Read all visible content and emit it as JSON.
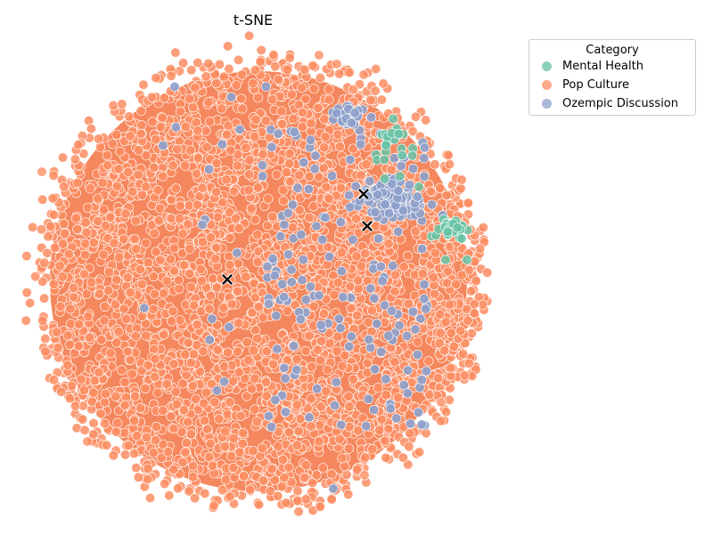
{
  "chart_data": {
    "type": "scatter",
    "title": "t-SNE",
    "xlabel": "",
    "ylabel": "",
    "axes_visible": false,
    "grid": false,
    "legend": {
      "title": "Category",
      "position": "top-right, outside plot",
      "entries": [
        {
          "name": "Mental Health",
          "color": "#66c2a5"
        },
        {
          "name": "Pop Culture",
          "color": "#fc8d62"
        },
        {
          "name": "Ozempic Discussion",
          "color": "#8da0cb"
        }
      ]
    },
    "series": [
      {
        "name": "Mental Health",
        "color": "#66c2a5",
        "description": "small cluster at right edge of the embedding"
      },
      {
        "name": "Pop Culture",
        "color": "#fc8d62",
        "description": "dominant dense circular cloud"
      },
      {
        "name": "Ozempic Discussion",
        "color": "#8da0cb",
        "description": "scattered points concentrated in upper-right region"
      }
    ],
    "centroids": {
      "marker": "X",
      "color": "#000000",
      "points": [
        {
          "x": 255,
          "y": 314
        },
        {
          "x": 408,
          "y": 218
        },
        {
          "x": 412,
          "y": 254
        }
      ]
    }
  }
}
